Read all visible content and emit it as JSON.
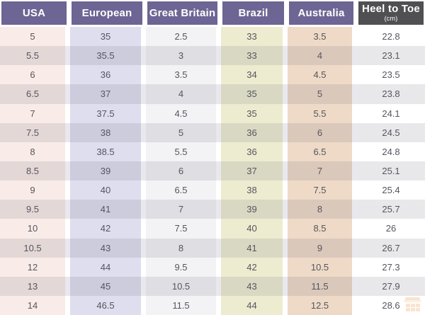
{
  "table": {
    "columns": [
      {
        "label": "USA"
      },
      {
        "label": "European"
      },
      {
        "label": "Great Britain"
      },
      {
        "label": "Brazil"
      },
      {
        "label": "Australia"
      },
      {
        "label": "Heel to Toe",
        "sublabel": "(cm)"
      }
    ],
    "rows": [
      [
        "5",
        "35",
        "2.5",
        "33",
        "3.5",
        "22.8"
      ],
      [
        "5.5",
        "35.5",
        "3",
        "33",
        "4",
        "23.1"
      ],
      [
        "6",
        "36",
        "3.5",
        "34",
        "4.5",
        "23.5"
      ],
      [
        "6.5",
        "37",
        "4",
        "35",
        "5",
        "23.8"
      ],
      [
        "7",
        "37.5",
        "4.5",
        "35",
        "5.5",
        "24.1"
      ],
      [
        "7.5",
        "38",
        "5",
        "36",
        "6",
        "24.5"
      ],
      [
        "8",
        "38.5",
        "5.5",
        "36",
        "6.5",
        "24.8"
      ],
      [
        "8.5",
        "39",
        "6",
        "37",
        "7",
        "25.1"
      ],
      [
        "9",
        "40",
        "6.5",
        "38",
        "7.5",
        "25.4"
      ],
      [
        "9.5",
        "41",
        "7",
        "39",
        "8",
        "25.7"
      ],
      [
        "10",
        "42",
        "7.5",
        "40",
        "8.5",
        "26"
      ],
      [
        "10.5",
        "43",
        "8",
        "41",
        "9",
        "26.7"
      ],
      [
        "12",
        "44",
        "9.5",
        "42",
        "10.5",
        "27.3"
      ],
      [
        "13",
        "45",
        "10.5",
        "43",
        "11.5",
        "27.9"
      ],
      [
        "14",
        "46.5",
        "11.5",
        "44",
        "12.5",
        "28.6"
      ]
    ]
  },
  "colors": {
    "header_purple": "#6d6594",
    "header_dark": "#505053",
    "col_usa": "#f9ece8",
    "col_european": "#dedeef",
    "col_gb": "#f3f3f6",
    "col_brazil": "#edecd0",
    "col_australia": "#eedac7",
    "col_heel": "#ffffff",
    "stripe": "#e9e8ee",
    "text": "#56555e",
    "watermark_orange": "#ef9f55"
  },
  "watermark": {
    "icon": "shop-logo-icon"
  }
}
